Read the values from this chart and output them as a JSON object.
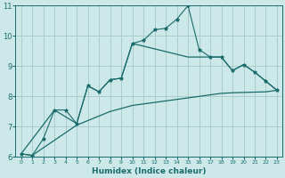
{
  "xlabel": "Humidex (Indice chaleur)",
  "bg_color": "#cce8e8",
  "grid_color": "#aacccc",
  "line_color": "#1a6b6b",
  "xlim": [
    -0.5,
    23.5
  ],
  "ylim": [
    6,
    11
  ],
  "xticks": [
    0,
    1,
    2,
    3,
    4,
    5,
    6,
    7,
    8,
    9,
    10,
    11,
    12,
    13,
    14,
    15,
    16,
    17,
    18,
    19,
    20,
    21,
    22,
    23
  ],
  "yticks": [
    6,
    7,
    8,
    9,
    10,
    11
  ],
  "zigzag_x": [
    0,
    1,
    2,
    3,
    4,
    5,
    6,
    7,
    8,
    9,
    10,
    11,
    12,
    13,
    14,
    15,
    16,
    17,
    18,
    19,
    20,
    21,
    22,
    23
  ],
  "zigzag_y": [
    6.1,
    6.05,
    6.6,
    7.55,
    7.55,
    7.1,
    8.35,
    8.15,
    8.55,
    8.6,
    9.75,
    9.85,
    10.2,
    10.25,
    10.55,
    11.0,
    9.55,
    9.3,
    9.3,
    8.85,
    9.05,
    8.8,
    8.5,
    8.2
  ],
  "line_lower_x": [
    0,
    1,
    2,
    3,
    4,
    5,
    6,
    7,
    8,
    9,
    10,
    11,
    12,
    13,
    14,
    15,
    16,
    17,
    18,
    19,
    20,
    21,
    22,
    23
  ],
  "line_lower_y": [
    6.1,
    6.05,
    6.3,
    6.55,
    6.8,
    7.05,
    7.2,
    7.35,
    7.5,
    7.6,
    7.7,
    7.75,
    7.8,
    7.85,
    7.9,
    7.95,
    8.0,
    8.05,
    8.1,
    8.12,
    8.13,
    8.14,
    8.15,
    8.2
  ],
  "line_upper_x": [
    0,
    3,
    5,
    6,
    7,
    8,
    9,
    10,
    15,
    18,
    19,
    20,
    21,
    22,
    23
  ],
  "line_upper_y": [
    6.1,
    7.55,
    7.1,
    8.35,
    8.15,
    8.55,
    8.6,
    9.75,
    9.3,
    9.3,
    8.85,
    9.05,
    8.8,
    8.5,
    8.2
  ]
}
